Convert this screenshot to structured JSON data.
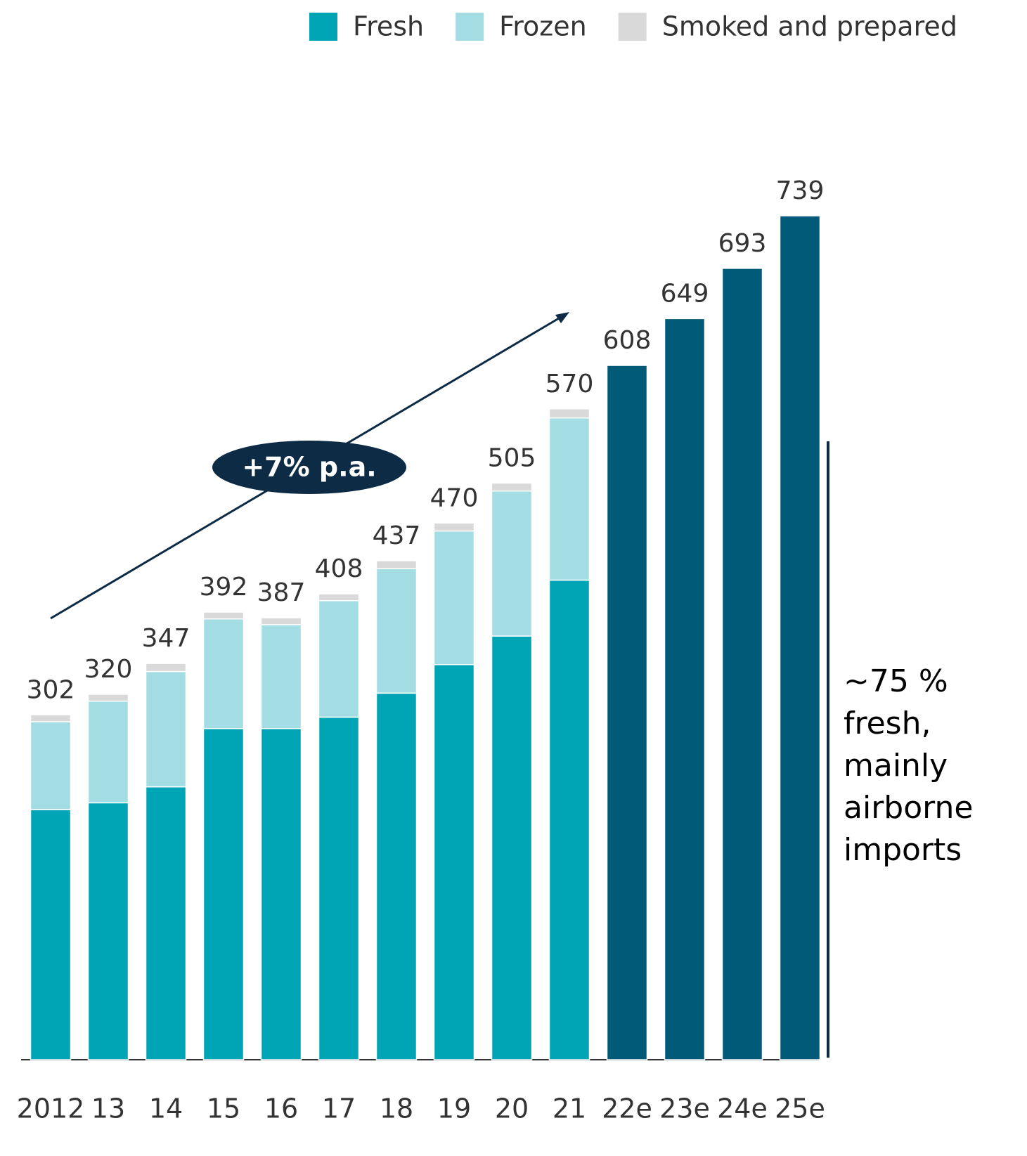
{
  "chart_data": {
    "type": "bar",
    "stacked": true,
    "categories": [
      "2012",
      "13",
      "14",
      "15",
      "16",
      "17",
      "18",
      "19",
      "20",
      "21",
      "22e",
      "23e",
      "24e",
      "25e"
    ],
    "series": [
      {
        "name": "Fresh",
        "color": "#00a5b5",
        "values": [
          219,
          225,
          239,
          290,
          290,
          300,
          321,
          346,
          371,
          420,
          null,
          null,
          null,
          null
        ]
      },
      {
        "name": "Frozen",
        "color": "#a3dde3",
        "values": [
          77,
          89,
          101,
          96,
          91,
          102,
          109,
          117,
          127,
          142,
          null,
          null,
          null,
          null
        ]
      },
      {
        "name": "Smoked and prepared",
        "color": "#d9d9d9",
        "values": [
          6,
          6,
          7,
          6,
          6,
          6,
          7,
          7,
          7,
          8,
          null,
          null,
          null,
          null
        ]
      },
      {
        "color": "#005a78",
        "values": [
          null,
          null,
          null,
          null,
          null,
          null,
          null,
          null,
          null,
          null,
          608,
          649,
          693,
          739
        ]
      }
    ],
    "totals": [
      302,
      320,
      347,
      392,
      387,
      408,
      437,
      470,
      505,
      570,
      608,
      649,
      693,
      739
    ],
    "ylim": [
      0,
      800
    ],
    "growth_label": "+7% p.a.",
    "note": [
      "~75 %",
      "fresh,",
      "mainly",
      "airborne",
      "imports"
    ]
  }
}
